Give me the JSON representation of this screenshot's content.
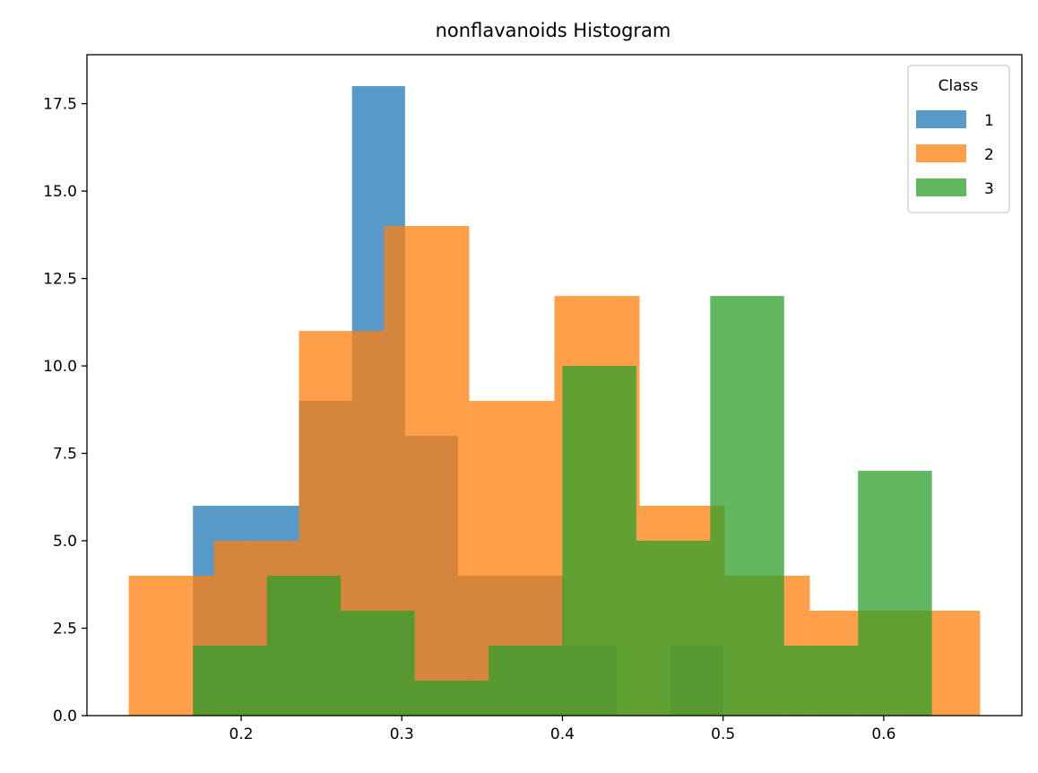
{
  "chart_data": {
    "type": "bar",
    "title": "nonflavanoids Histogram",
    "xlabel": "",
    "ylabel": "",
    "xlim": [
      0.104,
      0.686
    ],
    "ylim": [
      0,
      18.9
    ],
    "xticks": [
      0.2,
      0.3,
      0.4,
      0.5,
      0.6
    ],
    "xtick_labels": [
      "0.2",
      "0.3",
      "0.4",
      "0.5",
      "0.6"
    ],
    "yticks": [
      0,
      2.5,
      5,
      7.5,
      10,
      12.5,
      15,
      17.5
    ],
    "ytick_labels": [
      "0.0",
      "2.5",
      "5.0",
      "7.5",
      "10.0",
      "12.5",
      "15.0",
      "17.5"
    ],
    "grid": false,
    "bar_alpha": 0.75,
    "legend": {
      "title": "Class",
      "position": "top-right"
    },
    "series": [
      {
        "name": "1",
        "color": "#1f77b4",
        "bin_edges": [
          0.17,
          0.203,
          0.236,
          0.269,
          0.302,
          0.335,
          0.368,
          0.401,
          0.434,
          0.467,
          0.5
        ],
        "counts": [
          6,
          6,
          9,
          18,
          8,
          4,
          4,
          2,
          0,
          2
        ]
      },
      {
        "name": "2",
        "color": "#ff7f0e",
        "bin_edges": [
          0.13,
          0.183,
          0.236,
          0.289,
          0.342,
          0.395,
          0.448,
          0.501,
          0.554,
          0.607,
          0.66
        ],
        "counts": [
          4,
          5,
          11,
          14,
          9,
          12,
          6,
          4,
          3,
          3
        ]
      },
      {
        "name": "3",
        "color": "#2ca02c",
        "bin_edges": [
          0.17,
          0.216,
          0.262,
          0.308,
          0.354,
          0.4,
          0.446,
          0.492,
          0.538,
          0.584,
          0.63
        ],
        "counts": [
          2,
          4,
          3,
          1,
          2,
          10,
          5,
          12,
          2,
          7
        ]
      }
    ]
  }
}
